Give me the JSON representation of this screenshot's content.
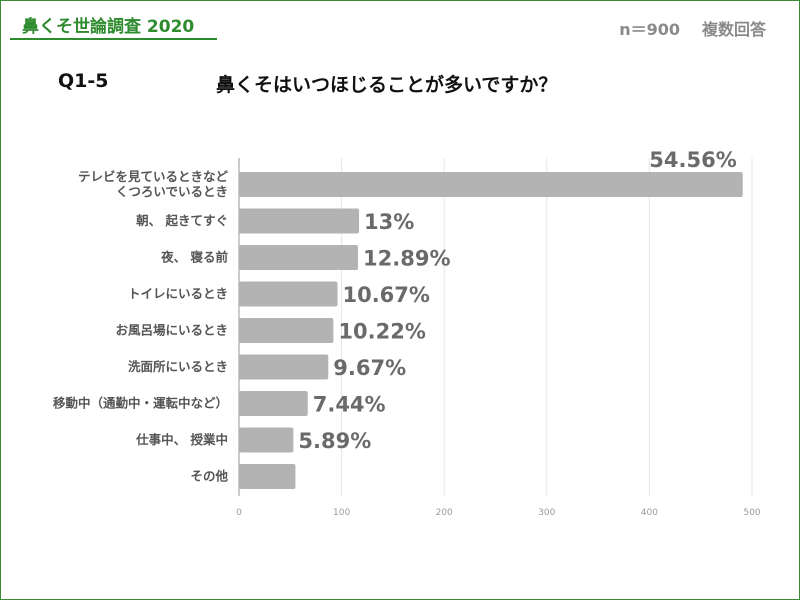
{
  "header": {
    "survey_title": "鼻くそ世論調査 2020",
    "sample": "n＝900",
    "answer_type": "複数回答"
  },
  "question": {
    "number": "Q1-5",
    "text": "鼻くそはいつほじることが多いですか？"
  },
  "colors": {
    "accent": "#2e8b2e",
    "bar": "#b3b3b3",
    "value_label": "#6a6a6a"
  },
  "chart_data": {
    "type": "bar",
    "orientation": "horizontal",
    "categories": [
      [
        "テレビを見ているときなど",
        "くつろいでいるとき"
      ],
      [
        "朝、 起きてすぐ"
      ],
      [
        "夜、 寝る前"
      ],
      [
        "トイレにいるとき"
      ],
      [
        "お風呂場にいるとき"
      ],
      [
        "洗面所にいるとき"
      ],
      [
        "移動中（通勤中・運転中など）"
      ],
      [
        "仕事中、 授業中"
      ],
      [
        "その他"
      ]
    ],
    "values": [
      491,
      117,
      116,
      96,
      92,
      87,
      67,
      53,
      55
    ],
    "data_labels": [
      "54.56%",
      "13%",
      "12.89%",
      "10.67%",
      "10.22%",
      "9.67%",
      "7.44%",
      "5.89%",
      ""
    ],
    "xlim": [
      0,
      500
    ],
    "xticks": [
      0,
      100,
      200,
      300,
      400,
      500
    ],
    "grid": true
  }
}
